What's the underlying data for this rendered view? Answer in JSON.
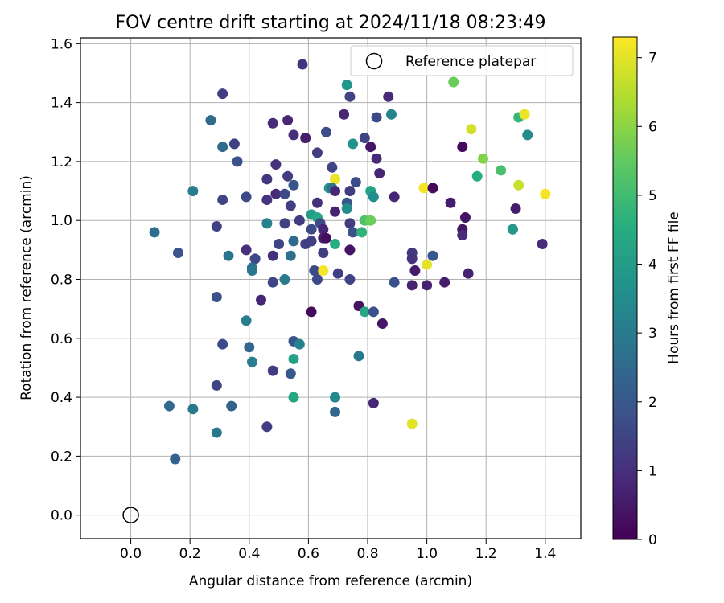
{
  "chart_data": {
    "type": "scatter",
    "title": "FOV centre drift starting at 2024/11/18 08:23:49",
    "xlabel": "Angular distance from reference (arcmin)",
    "ylabel": "Rotation from reference (arcmin)",
    "xlim": [
      -0.17,
      1.52
    ],
    "ylim": [
      -0.08,
      1.62
    ],
    "xticks": [
      "0.0",
      "0.2",
      "0.4",
      "0.6",
      "0.8",
      "1.0",
      "1.2",
      "1.4"
    ],
    "yticks": [
      "0.0",
      "0.2",
      "0.4",
      "0.6",
      "0.8",
      "1.0",
      "1.2",
      "1.4",
      "1.6"
    ],
    "grid": true,
    "legend": {
      "placement": "top-right",
      "label": "Reference platepar"
    },
    "reference_point": {
      "x": 0.0,
      "y": 0.0
    },
    "colorbar": {
      "label": "Hours from first FF file",
      "min": 0,
      "max": 7.3,
      "ticks": [
        "0",
        "1",
        "2",
        "3",
        "4",
        "5",
        "6",
        "7"
      ],
      "colormap": "viridis"
    },
    "points": [
      {
        "x": 0.58,
        "y": 1.53,
        "h": 1.1
      },
      {
        "x": 0.31,
        "y": 1.43,
        "h": 1.3
      },
      {
        "x": 0.73,
        "y": 1.46,
        "h": 3.8
      },
      {
        "x": 1.09,
        "y": 1.47,
        "h": 5.6
      },
      {
        "x": 0.74,
        "y": 1.42,
        "h": 1.5
      },
      {
        "x": 0.87,
        "y": 1.42,
        "h": 0.9
      },
      {
        "x": 0.27,
        "y": 1.34,
        "h": 2.5
      },
      {
        "x": 0.48,
        "y": 1.33,
        "h": 0.9
      },
      {
        "x": 0.53,
        "y": 1.34,
        "h": 0.8
      },
      {
        "x": 0.72,
        "y": 1.36,
        "h": 0.8
      },
      {
        "x": 0.83,
        "y": 1.35,
        "h": 1.6
      },
      {
        "x": 0.88,
        "y": 1.36,
        "h": 3.3
      },
      {
        "x": 1.31,
        "y": 1.35,
        "h": 4.8
      },
      {
        "x": 1.33,
        "y": 1.36,
        "h": 7.1
      },
      {
        "x": 0.55,
        "y": 1.29,
        "h": 1.0
      },
      {
        "x": 0.59,
        "y": 1.28,
        "h": 0.6
      },
      {
        "x": 0.66,
        "y": 1.3,
        "h": 1.7
      },
      {
        "x": 0.79,
        "y": 1.28,
        "h": 1.5
      },
      {
        "x": 0.75,
        "y": 1.26,
        "h": 3.7
      },
      {
        "x": 1.15,
        "y": 1.31,
        "h": 6.8
      },
      {
        "x": 1.34,
        "y": 1.29,
        "h": 3.5
      },
      {
        "x": 0.31,
        "y": 1.25,
        "h": 2.5
      },
      {
        "x": 0.35,
        "y": 1.26,
        "h": 1.4
      },
      {
        "x": 0.36,
        "y": 1.2,
        "h": 1.8
      },
      {
        "x": 0.63,
        "y": 1.23,
        "h": 1.3
      },
      {
        "x": 0.49,
        "y": 1.19,
        "h": 1.0
      },
      {
        "x": 0.81,
        "y": 1.25,
        "h": 0.4
      },
      {
        "x": 0.83,
        "y": 1.21,
        "h": 0.9
      },
      {
        "x": 1.12,
        "y": 1.25,
        "h": 0.2
      },
      {
        "x": 1.19,
        "y": 1.21,
        "h": 5.9
      },
      {
        "x": 0.68,
        "y": 1.18,
        "h": 1.5
      },
      {
        "x": 0.46,
        "y": 1.14,
        "h": 1.2
      },
      {
        "x": 0.53,
        "y": 1.15,
        "h": 1.3
      },
      {
        "x": 0.69,
        "y": 1.14,
        "h": 7.1
      },
      {
        "x": 0.84,
        "y": 1.16,
        "h": 0.8
      },
      {
        "x": 1.17,
        "y": 1.15,
        "h": 4.5
      },
      {
        "x": 1.25,
        "y": 1.17,
        "h": 5.1
      },
      {
        "x": 0.21,
        "y": 1.1,
        "h": 3.0
      },
      {
        "x": 0.55,
        "y": 1.12,
        "h": 1.9
      },
      {
        "x": 0.67,
        "y": 1.11,
        "h": 3.8
      },
      {
        "x": 0.76,
        "y": 1.13,
        "h": 1.7
      },
      {
        "x": 0.81,
        "y": 1.1,
        "h": 4.2
      },
      {
        "x": 0.99,
        "y": 1.11,
        "h": 7.2
      },
      {
        "x": 1.02,
        "y": 1.11,
        "h": 0.2
      },
      {
        "x": 1.31,
        "y": 1.12,
        "h": 6.7
      },
      {
        "x": 1.4,
        "y": 1.09,
        "h": 7.2
      },
      {
        "x": 0.31,
        "y": 1.07,
        "h": 1.5
      },
      {
        "x": 0.39,
        "y": 1.08,
        "h": 1.6
      },
      {
        "x": 0.46,
        "y": 1.07,
        "h": 1.1
      },
      {
        "x": 0.49,
        "y": 1.09,
        "h": 0.9
      },
      {
        "x": 0.52,
        "y": 1.09,
        "h": 1.6
      },
      {
        "x": 0.54,
        "y": 1.05,
        "h": 1.4
      },
      {
        "x": 0.63,
        "y": 1.06,
        "h": 1.0
      },
      {
        "x": 0.68,
        "y": 1.11,
        "h": 2.8
      },
      {
        "x": 0.69,
        "y": 1.1,
        "h": 0.8
      },
      {
        "x": 0.73,
        "y": 1.06,
        "h": 1.9
      },
      {
        "x": 0.74,
        "y": 1.1,
        "h": 1.3
      },
      {
        "x": 0.82,
        "y": 1.08,
        "h": 3.6
      },
      {
        "x": 0.89,
        "y": 1.08,
        "h": 0.8
      },
      {
        "x": 1.08,
        "y": 1.06,
        "h": 0.6
      },
      {
        "x": 1.3,
        "y": 1.04,
        "h": 0.6
      },
      {
        "x": 0.69,
        "y": 1.03,
        "h": 0.7
      },
      {
        "x": 0.73,
        "y": 1.04,
        "h": 3.5
      },
      {
        "x": 0.61,
        "y": 1.02,
        "h": 4.0
      },
      {
        "x": 0.63,
        "y": 1.01,
        "h": 4.3
      },
      {
        "x": 0.79,
        "y": 1.0,
        "h": 5.2
      },
      {
        "x": 0.81,
        "y": 1.0,
        "h": 5.6
      },
      {
        "x": 0.08,
        "y": 0.96,
        "h": 2.6
      },
      {
        "x": 0.29,
        "y": 0.98,
        "h": 1.4
      },
      {
        "x": 0.46,
        "y": 0.99,
        "h": 3.2
      },
      {
        "x": 0.52,
        "y": 0.99,
        "h": 1.4
      },
      {
        "x": 0.57,
        "y": 1.0,
        "h": 1.3
      },
      {
        "x": 0.61,
        "y": 0.97,
        "h": 1.6
      },
      {
        "x": 0.64,
        "y": 0.99,
        "h": 1.6
      },
      {
        "x": 0.65,
        "y": 0.97,
        "h": 0.8
      },
      {
        "x": 0.74,
        "y": 0.99,
        "h": 1.3
      },
      {
        "x": 0.75,
        "y": 0.96,
        "h": 1.8
      },
      {
        "x": 0.78,
        "y": 0.96,
        "h": 4.7
      },
      {
        "x": 1.12,
        "y": 0.97,
        "h": 0.4
      },
      {
        "x": 1.13,
        "y": 1.01,
        "h": 0.4
      },
      {
        "x": 1.12,
        "y": 0.95,
        "h": 0.9
      },
      {
        "x": 1.29,
        "y": 0.97,
        "h": 1.6
      },
      {
        "x": 1.29,
        "y": 0.97,
        "h": 3.9
      },
      {
        "x": 0.16,
        "y": 0.89,
        "h": 1.9
      },
      {
        "x": 0.33,
        "y": 0.88,
        "h": 2.8
      },
      {
        "x": 0.39,
        "y": 0.9,
        "h": 1.0
      },
      {
        "x": 0.42,
        "y": 0.87,
        "h": 1.6
      },
      {
        "x": 0.48,
        "y": 0.88,
        "h": 1.0
      },
      {
        "x": 0.5,
        "y": 0.92,
        "h": 1.5
      },
      {
        "x": 0.54,
        "y": 0.88,
        "h": 2.7
      },
      {
        "x": 0.55,
        "y": 0.93,
        "h": 2.5
      },
      {
        "x": 0.59,
        "y": 0.92,
        "h": 1.4
      },
      {
        "x": 0.61,
        "y": 0.93,
        "h": 1.4
      },
      {
        "x": 0.65,
        "y": 0.94,
        "h": 0.6
      },
      {
        "x": 0.66,
        "y": 0.94,
        "h": 0.3
      },
      {
        "x": 0.69,
        "y": 0.92,
        "h": 4.5
      },
      {
        "x": 0.65,
        "y": 0.89,
        "h": 1.3
      },
      {
        "x": 0.74,
        "y": 0.9,
        "h": 0.4
      },
      {
        "x": 0.95,
        "y": 0.89,
        "h": 1.2
      },
      {
        "x": 0.95,
        "y": 0.87,
        "h": 1.1
      },
      {
        "x": 1.02,
        "y": 0.88,
        "h": 2.0
      },
      {
        "x": 1.39,
        "y": 0.92,
        "h": 0.9
      },
      {
        "x": 0.41,
        "y": 0.84,
        "h": 2.5
      },
      {
        "x": 0.41,
        "y": 0.83,
        "h": 2.9
      },
      {
        "x": 0.62,
        "y": 0.83,
        "h": 1.6
      },
      {
        "x": 0.65,
        "y": 0.83,
        "h": 7.2
      },
      {
        "x": 0.7,
        "y": 0.82,
        "h": 1.4
      },
      {
        "x": 1.0,
        "y": 0.85,
        "h": 7.0
      },
      {
        "x": 0.96,
        "y": 0.83,
        "h": 0.6
      },
      {
        "x": 1.14,
        "y": 0.82,
        "h": 0.7
      },
      {
        "x": 0.48,
        "y": 0.79,
        "h": 1.5
      },
      {
        "x": 0.52,
        "y": 0.8,
        "h": 3.0
      },
      {
        "x": 0.63,
        "y": 0.8,
        "h": 1.6
      },
      {
        "x": 0.74,
        "y": 0.8,
        "h": 1.5
      },
      {
        "x": 0.89,
        "y": 0.79,
        "h": 1.8
      },
      {
        "x": 0.95,
        "y": 0.78,
        "h": 0.7
      },
      {
        "x": 1.0,
        "y": 0.78,
        "h": 0.7
      },
      {
        "x": 1.06,
        "y": 0.79,
        "h": 0.6
      },
      {
        "x": 0.29,
        "y": 0.74,
        "h": 1.8
      },
      {
        "x": 0.44,
        "y": 0.73,
        "h": 0.8
      },
      {
        "x": 0.61,
        "y": 0.69,
        "h": 0.2
      },
      {
        "x": 0.77,
        "y": 0.71,
        "h": 0.4
      },
      {
        "x": 0.79,
        "y": 0.69,
        "h": 4.3
      },
      {
        "x": 0.82,
        "y": 0.69,
        "h": 1.8
      },
      {
        "x": 0.85,
        "y": 0.65,
        "h": 0.4
      },
      {
        "x": 0.39,
        "y": 0.66,
        "h": 3.1
      },
      {
        "x": 0.31,
        "y": 0.58,
        "h": 1.6
      },
      {
        "x": 0.4,
        "y": 0.57,
        "h": 2.4
      },
      {
        "x": 0.55,
        "y": 0.59,
        "h": 1.9
      },
      {
        "x": 0.57,
        "y": 0.58,
        "h": 3.2
      },
      {
        "x": 0.41,
        "y": 0.52,
        "h": 3.1
      },
      {
        "x": 0.55,
        "y": 0.53,
        "h": 4.2
      },
      {
        "x": 0.77,
        "y": 0.54,
        "h": 2.9
      },
      {
        "x": 0.48,
        "y": 0.49,
        "h": 1.3
      },
      {
        "x": 0.54,
        "y": 0.48,
        "h": 2.0
      },
      {
        "x": 0.29,
        "y": 0.44,
        "h": 1.5
      },
      {
        "x": 0.55,
        "y": 0.4,
        "h": 4.3
      },
      {
        "x": 0.69,
        "y": 0.4,
        "h": 3.4
      },
      {
        "x": 0.82,
        "y": 0.38,
        "h": 0.8
      },
      {
        "x": 0.13,
        "y": 0.37,
        "h": 2.5
      },
      {
        "x": 0.21,
        "y": 0.36,
        "h": 2.9
      },
      {
        "x": 0.34,
        "y": 0.37,
        "h": 2.3
      },
      {
        "x": 0.69,
        "y": 0.35,
        "h": 2.4
      },
      {
        "x": 0.95,
        "y": 0.31,
        "h": 7.0
      },
      {
        "x": 0.46,
        "y": 0.3,
        "h": 1.3
      },
      {
        "x": 0.29,
        "y": 0.28,
        "h": 2.9
      },
      {
        "x": 0.15,
        "y": 0.19,
        "h": 2.3
      }
    ]
  }
}
